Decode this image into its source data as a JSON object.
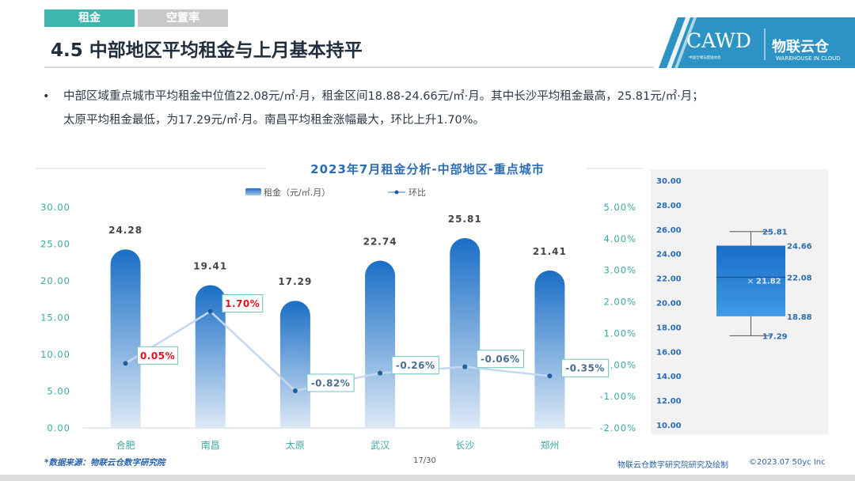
{
  "tabs": [
    {
      "label": "租金"
    },
    {
      "label": "空置率"
    }
  ],
  "page_title": "4.5 中部地区平均租金与上月基本持平",
  "logo": {
    "cawd": "CAWD",
    "cawd_sub": "中国仓储与配送协会",
    "brand": "物联云仓",
    "brand_sub": "WAREHOUSE IN CLOUD"
  },
  "bullet": {
    "line1": "中部区域重点城市平均租金中位值22.08元/㎡·月，租金区间18.88-24.66元/㎡·月。其中长沙平均租金最高，25.81元/㎡·月；",
    "line2": "太原平均租金最低，为17.29元/㎡·月。南昌平均租金涨幅最大，环比上升1.70%。"
  },
  "chart_data": [
    {
      "type": "bar",
      "title": "2023年7月租金分析-中部地区-重点城市",
      "categories": [
        "合肥",
        "南昌",
        "太原",
        "武汉",
        "长沙",
        "郑州"
      ],
      "series": [
        {
          "name": "租金（元/㎡.月）",
          "type": "bar",
          "axis": "left",
          "values": [
            24.28,
            19.41,
            17.29,
            22.74,
            25.81,
            21.41
          ],
          "labels": [
            "24.28",
            "19.41",
            "17.29",
            "22.74",
            "25.81",
            "21.41"
          ]
        },
        {
          "name": "环比",
          "type": "line",
          "axis": "right",
          "values": [
            0.05,
            1.7,
            -0.82,
            -0.26,
            -0.06,
            -0.35
          ],
          "labels": [
            "0.05%",
            "1.70%",
            "-0.82%",
            "-0.26%",
            "-0.06%",
            "-0.35%"
          ]
        }
      ],
      "ylim": [
        0,
        30
      ],
      "yticks": [
        "0.00",
        "5.00",
        "10.00",
        "15.00",
        "20.00",
        "25.00",
        "30.00"
      ],
      "y2lim": [
        -2,
        5
      ],
      "y2ticks": [
        "-2.00%",
        "-1.00%",
        "0.00%",
        "1.00%",
        "2.00%",
        "3.00%",
        "4.00%",
        "5.00%"
      ],
      "legend": "top",
      "colors": {
        "bar_top": "#1a6ec6",
        "bar_bottom": "#dde9f6",
        "line": "#c5d8ee",
        "marker": "#1f5f9e",
        "positive_label": "#e0141e",
        "negative_label": "#4a6e8e",
        "label_border": "#6dc3bf"
      }
    },
    {
      "type": "box",
      "ylim": [
        10,
        30
      ],
      "yticks": [
        "10.00",
        "12.00",
        "14.00",
        "16.00",
        "18.00",
        "20.00",
        "22.00",
        "24.00",
        "26.00",
        "28.00",
        "30.00"
      ],
      "min": 17.29,
      "q1": 18.88,
      "median": 22.08,
      "q3": 24.66,
      "max": 25.81,
      "mean": 21.82,
      "labels": {
        "min": "17.29",
        "q1": "18.88",
        "median": "22.08",
        "q3": "24.66",
        "max": "25.81",
        "mean": "21.82"
      },
      "colors": {
        "box_top": "#1a6ec6",
        "box_bottom": "#3f9ae8",
        "panel": "#f2f2f2"
      }
    }
  ],
  "footer": {
    "source": "*数据来源：物联云仓数字研究院",
    "page": "17/30",
    "credit": "物联云仓数字研究院研究及绘制",
    "credit_date": "©2023.07  50yc Inc"
  }
}
